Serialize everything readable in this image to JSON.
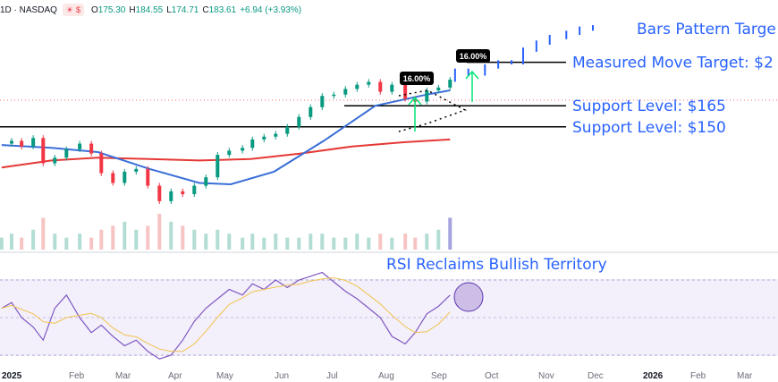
{
  "header": {
    "symbol": "1D · NASDAQ",
    "badge_icons": [
      "sun-icon",
      "currency-icon"
    ],
    "open_label": "O",
    "open": "175.30",
    "high_label": "H",
    "high": "184.55",
    "low_label": "L",
    "low": "174.71",
    "close_label": "C",
    "close": "183.61",
    "change": "+6.94 (+3.93%)"
  },
  "chart_data": {
    "type": "candlestick",
    "x_ticks": [
      "2025",
      "Feb",
      "Mar",
      "Apr",
      "May",
      "Jun",
      "Jul",
      "Aug",
      "Sep",
      "Oct",
      "Nov",
      "Dec",
      "2026",
      "Feb",
      "Mar"
    ],
    "price_series": [
      {
        "date": "2025-01-02",
        "close": 138
      },
      {
        "date": "2025-01-08",
        "close": 140
      },
      {
        "date": "2025-01-14",
        "close": 136
      },
      {
        "date": "2025-01-21",
        "close": 142
      },
      {
        "date": "2025-01-27",
        "close": 124
      },
      {
        "date": "2025-02-03",
        "close": 128
      },
      {
        "date": "2025-02-10",
        "close": 134
      },
      {
        "date": "2025-02-18",
        "close": 138
      },
      {
        "date": "2025-02-25",
        "close": 131
      },
      {
        "date": "2025-03-03",
        "close": 117
      },
      {
        "date": "2025-03-10",
        "close": 110
      },
      {
        "date": "2025-03-17",
        "close": 118
      },
      {
        "date": "2025-03-24",
        "close": 120
      },
      {
        "date": "2025-03-31",
        "close": 108
      },
      {
        "date": "2025-04-07",
        "close": 97
      },
      {
        "date": "2025-04-14",
        "close": 104
      },
      {
        "date": "2025-04-21",
        "close": 102
      },
      {
        "date": "2025-04-28",
        "close": 108
      },
      {
        "date": "2025-05-05",
        "close": 114
      },
      {
        "date": "2025-05-12",
        "close": 130
      },
      {
        "date": "2025-05-19",
        "close": 133
      },
      {
        "date": "2025-05-27",
        "close": 135
      },
      {
        "date": "2025-06-02",
        "close": 141
      },
      {
        "date": "2025-06-09",
        "close": 143
      },
      {
        "date": "2025-06-16",
        "close": 145
      },
      {
        "date": "2025-06-23",
        "close": 150
      },
      {
        "date": "2025-06-30",
        "close": 157
      },
      {
        "date": "2025-07-07",
        "close": 164
      },
      {
        "date": "2025-07-14",
        "close": 172
      },
      {
        "date": "2025-07-21",
        "close": 173
      },
      {
        "date": "2025-07-28",
        "close": 177
      },
      {
        "date": "2025-08-04",
        "close": 180
      },
      {
        "date": "2025-08-11",
        "close": 182
      },
      {
        "date": "2025-08-18",
        "close": 175
      },
      {
        "date": "2025-08-25",
        "close": 180
      },
      {
        "date": "2025-09-02",
        "close": 170
      },
      {
        "date": "2025-09-08",
        "close": 168
      },
      {
        "date": "2025-09-15",
        "close": 176
      },
      {
        "date": "2025-09-22",
        "close": 178
      },
      {
        "date": "2025-09-29",
        "close": 183.61
      }
    ],
    "projection_series": [
      {
        "date": "2025-10-02",
        "close": 190
      },
      {
        "date": "2025-10-10",
        "close": 188
      },
      {
        "date": "2025-10-20",
        "close": 193
      },
      {
        "date": "2025-10-28",
        "close": 196
      },
      {
        "date": "2025-11-05",
        "close": 196
      },
      {
        "date": "2025-11-12",
        "close": 205
      },
      {
        "date": "2025-11-20",
        "close": 210
      },
      {
        "date": "2025-11-28",
        "close": 214
      },
      {
        "date": "2025-12-08",
        "close": 217
      },
      {
        "date": "2025-12-16",
        "close": 220
      },
      {
        "date": "2025-12-24",
        "close": 221
      }
    ],
    "ma50": [
      {
        "date": "2025-01-02",
        "v": 137
      },
      {
        "date": "2025-02-01",
        "v": 135
      },
      {
        "date": "2025-03-01",
        "v": 132
      },
      {
        "date": "2025-04-01",
        "v": 120
      },
      {
        "date": "2025-05-01",
        "v": 110
      },
      {
        "date": "2025-05-20",
        "v": 109
      },
      {
        "date": "2025-06-15",
        "v": 118
      },
      {
        "date": "2025-07-15",
        "v": 140
      },
      {
        "date": "2025-08-15",
        "v": 165
      },
      {
        "date": "2025-09-15",
        "v": 173
      },
      {
        "date": "2025-09-29",
        "v": 176
      }
    ],
    "ma200": [
      {
        "date": "2025-01-02",
        "v": 121
      },
      {
        "date": "2025-02-01",
        "v": 126
      },
      {
        "date": "2025-03-01",
        "v": 128
      },
      {
        "date": "2025-04-01",
        "v": 127
      },
      {
        "date": "2025-05-01",
        "v": 126
      },
      {
        "date": "2025-06-01",
        "v": 127
      },
      {
        "date": "2025-07-01",
        "v": 131
      },
      {
        "date": "2025-08-01",
        "v": 136
      },
      {
        "date": "2025-09-01",
        "v": 139
      },
      {
        "date": "2025-09-29",
        "v": 141
      }
    ],
    "volume": [
      3,
      4,
      3,
      5,
      8,
      4,
      3,
      4,
      3,
      5,
      6,
      7,
      5,
      6,
      9,
      7,
      6,
      5,
      4,
      5,
      4,
      3,
      4,
      3,
      4,
      3,
      3,
      4,
      4,
      3,
      3,
      4,
      3,
      4,
      3,
      4,
      3,
      4,
      5,
      8
    ],
    "levels": [
      {
        "price": 165,
        "label": "Support Level: $165"
      },
      {
        "price": 150,
        "label": "Support Level: $150"
      },
      {
        "price": 196,
        "label": "Measured Move Target: $2"
      },
      {
        "price": 220,
        "label": "Bars Pattern Targe"
      }
    ],
    "pct_labels": [
      "16.00%",
      "16.00%"
    ],
    "rsi": {
      "title": "RSI Reclaims Bullish Territory",
      "values": [
        55,
        58,
        50,
        45,
        38,
        55,
        62,
        50,
        42,
        46,
        40,
        35,
        38,
        32,
        28,
        30,
        38,
        48,
        55,
        60,
        65,
        62,
        68,
        65,
        70,
        66,
        70,
        72,
        74,
        69,
        64,
        60,
        55,
        50,
        40,
        36,
        42,
        52,
        56,
        62
      ],
      "overbought": 70,
      "oversold": 30
    }
  }
}
